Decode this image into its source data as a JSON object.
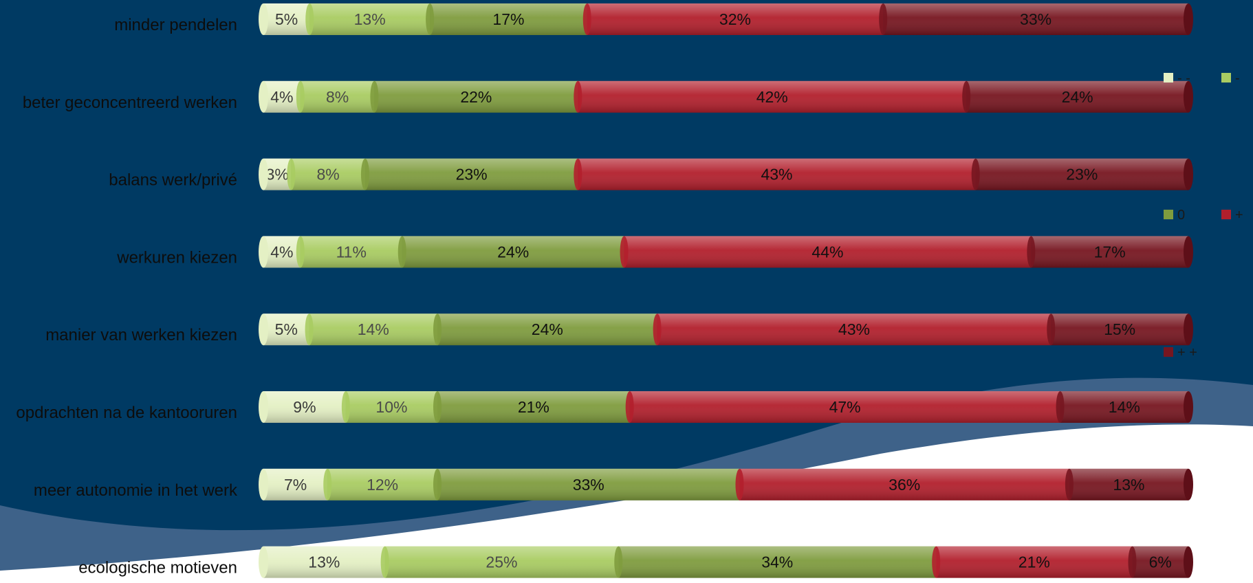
{
  "chart_data": {
    "type": "bar",
    "orientation": "horizontal",
    "stacked": true,
    "normalized": true,
    "title": "",
    "xlabel": "",
    "ylabel": "",
    "categories": [
      "minder pendelen",
      "beter geconcentreerd werken",
      "balans werk/privé",
      "werkuren kiezen",
      "manier van werken kiezen",
      "opdrachten na de kantooruren",
      "meer autonomie in het werk",
      "ecologische motieven"
    ],
    "series": [
      {
        "name": "- -",
        "color": "#e4f0c4",
        "label_color": "#3a3a3a",
        "values": [
          5,
          4,
          3,
          4,
          5,
          9,
          7,
          13
        ]
      },
      {
        "name": "-",
        "color": "#a9cc62",
        "label_color": "#4a4a4a",
        "values": [
          13,
          8,
          8,
          11,
          14,
          10,
          12,
          25
        ]
      },
      {
        "name": "0",
        "color": "#7f9c3e",
        "label_color": "#111111",
        "values": [
          17,
          22,
          23,
          24,
          24,
          21,
          33,
          34
        ]
      },
      {
        "name": "+",
        "color": "#b21f2c",
        "label_color": "#111111",
        "values": [
          32,
          42,
          43,
          44,
          43,
          47,
          36,
          21
        ]
      },
      {
        "name": "+ +",
        "color": "#771620",
        "label_color": "#111111",
        "values": [
          33,
          24,
          23,
          17,
          15,
          14,
          13,
          6
        ]
      }
    ],
    "data_label_suffix": "%",
    "grid": false,
    "legend_position": "right"
  },
  "colors": {
    "background_dark": "#003a63",
    "wave_light": "#3e6289",
    "wave_white": "#ffffff"
  }
}
